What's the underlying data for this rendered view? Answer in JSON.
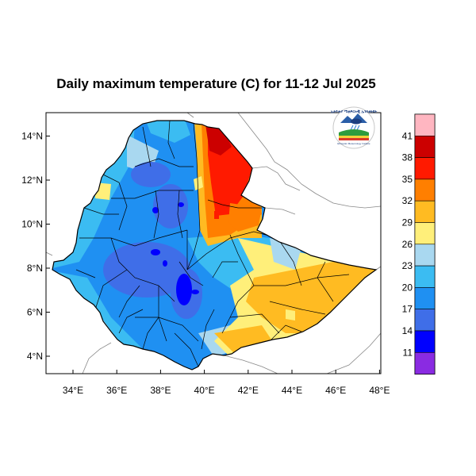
{
  "title": "Daily maximum temperature (C) for 11-12 Jul 2025",
  "axes": {
    "y_ticks": [
      {
        "lat": 14,
        "label": "14°N"
      },
      {
        "lat": 12,
        "label": "12°N"
      },
      {
        "lat": 10,
        "label": "10°N"
      },
      {
        "lat": 8,
        "label": "8°N"
      },
      {
        "lat": 6,
        "label": "6°N"
      },
      {
        "lat": 4,
        "label": "4°N"
      }
    ],
    "x_ticks": [
      {
        "lon": 34,
        "label": "34°E"
      },
      {
        "lon": 36,
        "label": "36°E"
      },
      {
        "lon": 38,
        "label": "38°E"
      },
      {
        "lon": 40,
        "label": "40°E"
      },
      {
        "lon": 42,
        "label": "42°E"
      },
      {
        "lon": 44,
        "label": "44°E"
      },
      {
        "lon": 46,
        "label": "46°E"
      },
      {
        "lon": 48,
        "label": "48°E"
      }
    ]
  },
  "colorbar": {
    "colors": [
      "#ffb6c1",
      "#cc0000",
      "#ff1a00",
      "#ff7f00",
      "#ffbb22",
      "#ffef7a",
      "#a9d8f0",
      "#3bbcf2",
      "#1f90f2",
      "#3f6ee8",
      "#0000ff",
      "#8a2be2"
    ],
    "labels": [
      "41",
      "38",
      "35",
      "32",
      "29",
      "26",
      "23",
      "20",
      "17",
      "14",
      "11"
    ]
  },
  "logo": {
    "text": "ኢትዮጵያ ሜቲዎሮሎጂ ኢንስቲትዩት",
    "subtext": "Ethiopian Meteorology Institute"
  },
  "colors": {
    "border": "#000000",
    "neighbor_border": "#888888"
  }
}
